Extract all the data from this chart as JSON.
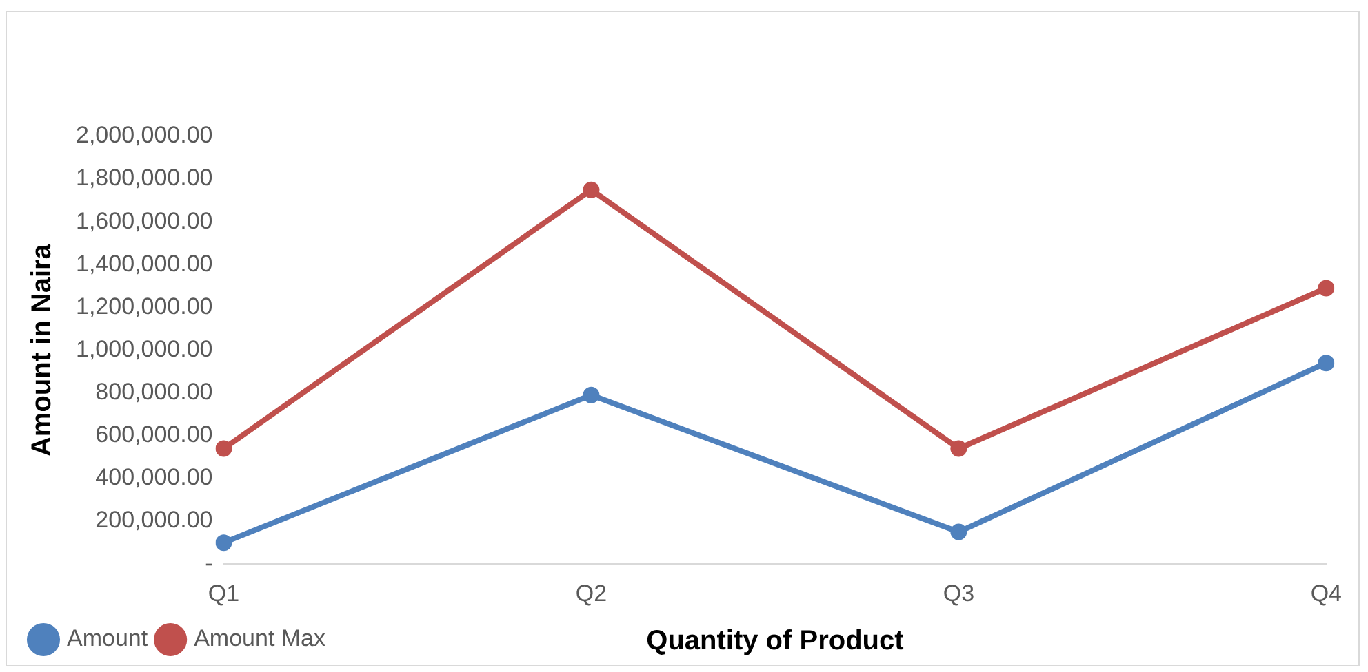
{
  "chart_data": {
    "type": "line",
    "xlabel": "Quantity of Product",
    "ylabel": "Amount in Naira",
    "categories": [
      "Q1",
      "Q2",
      "Q3",
      "Q4"
    ],
    "series": [
      {
        "name": "Amount",
        "color": "#4f81bd",
        "values": [
          100000,
          790000,
          150000,
          940000
        ]
      },
      {
        "name": "Amount Max",
        "color": "#c0504d",
        "values": [
          540000,
          1750000,
          540000,
          1290000
        ]
      }
    ],
    "ylim": [
      0,
      2000000
    ],
    "yticks": [
      {
        "value": 0,
        "label": "-"
      },
      {
        "value": 200000,
        "label": "200,000.00"
      },
      {
        "value": 400000,
        "label": "400,000.00"
      },
      {
        "value": 600000,
        "label": "600,000.00"
      },
      {
        "value": 800000,
        "label": "800,000.00"
      },
      {
        "value": 1000000,
        "label": "1,000,000.00"
      },
      {
        "value": 1200000,
        "label": "1,200,000.00"
      },
      {
        "value": 1400000,
        "label": "1,400,000.00"
      },
      {
        "value": 1600000,
        "label": "1,600,000.00"
      },
      {
        "value": 1800000,
        "label": "1,800,000.00"
      },
      {
        "value": 2000000,
        "label": "2,000,000.00"
      }
    ],
    "grid": false,
    "legend": "bottom left",
    "marker": "circle",
    "line_style": "solid"
  }
}
